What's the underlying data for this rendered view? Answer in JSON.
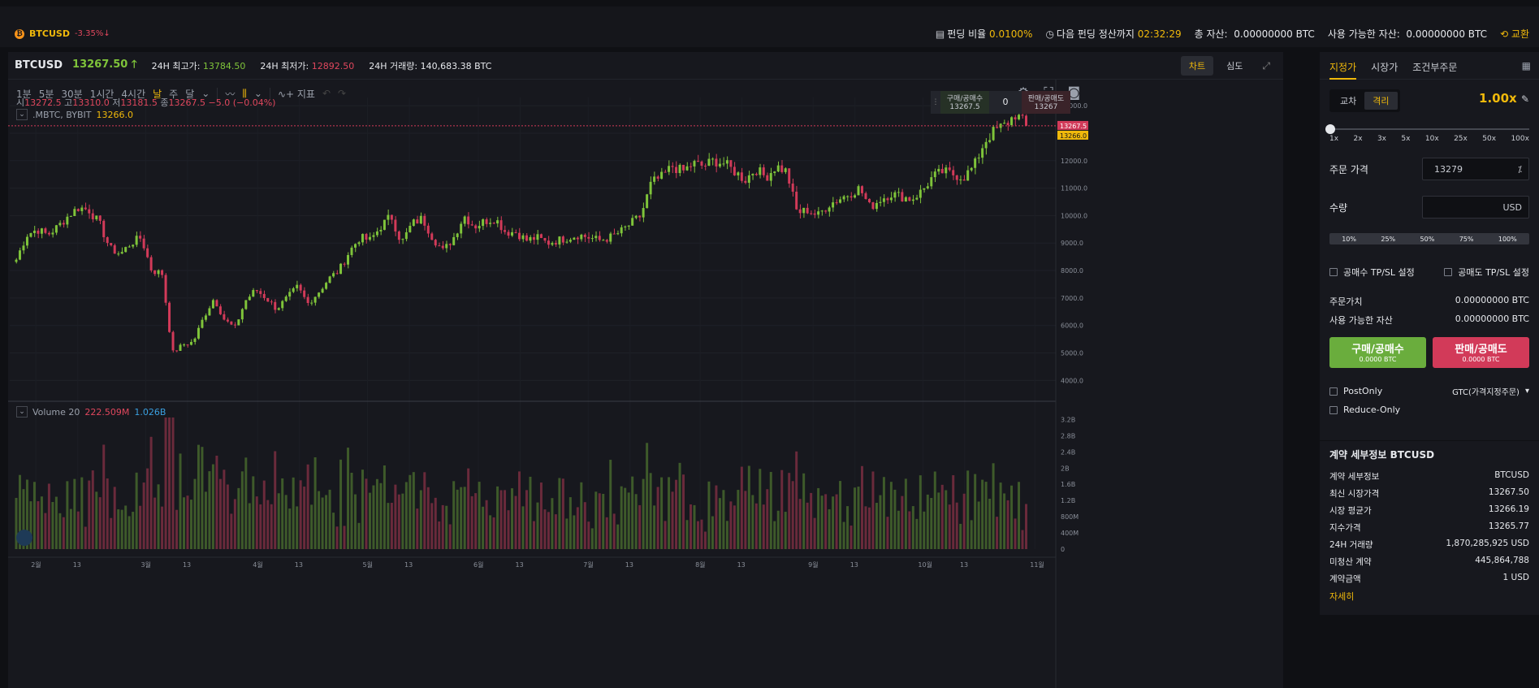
{
  "topbar": {
    "symbol": "BTCUSD",
    "change": "-3.35%↓",
    "funding_label": "펀딩 비율",
    "funding_value": "0.0100%",
    "next_funding_label": "다음 펀딩 정산까지",
    "next_funding_value": "02:32:29",
    "total_assets_label": "총 자산:",
    "total_assets_value": "0.00000000 BTC",
    "available_label": "사용 가능한 자산:",
    "available_value": "0.00000000 BTC",
    "exchange_label": "교환"
  },
  "chart_header": {
    "pair": "BTCUSD",
    "last_price": "13267.50 🡑",
    "high_label": "24H 최고가:",
    "high_value": "13784.50",
    "low_label": "24H 최저가:",
    "low_value": "12892.50",
    "volume_label": "24H 거래량:",
    "volume_value": "140,683.38 BTC",
    "tab_chart": "차트",
    "tab_depth": "심도"
  },
  "toolbar": {
    "timeframes": [
      "1분",
      "5분",
      "30분",
      "1시간",
      "4시간",
      "날",
      "주",
      "달"
    ],
    "active": "날",
    "indicators_label": "지표"
  },
  "ohlc": {
    "open_label": "시",
    "open": "13272.5",
    "high_label": "고",
    "high": "13310.0",
    "low_label": "저",
    "low": "13181.5",
    "close_label": "종",
    "close": "13267.5",
    "change": "−5.0 (−0.04%)"
  },
  "legend": {
    "series": ".MBTC, BYBIT",
    "value": "13266.0"
  },
  "quick_order": {
    "buy_label": "구매/공매수",
    "buy_price": "13267.5",
    "qty": "0",
    "sell_label": "판매/공매도",
    "sell_price": "13267"
  },
  "volume_legend": {
    "label": "Volume 20",
    "v1": "222.509M",
    "v2": "1.026B"
  },
  "price_tags": {
    "last": "13267.5",
    "mark": "13266.0"
  },
  "chart_data": {
    "type": "candlestick",
    "y_ticks": [
      4000,
      5000,
      6000,
      7000,
      8000,
      9000,
      10000,
      11000,
      12000,
      13000,
      14000
    ],
    "y_tick_labels": [
      "4000.0",
      "5000.0",
      "6000.0",
      "7000.0",
      "8000.0",
      "9000.0",
      "10000.0",
      "11000.0",
      "12000.0",
      "13000.0",
      "14000.0"
    ],
    "ylim": [
      3300,
      14300
    ],
    "volume_ticks": [
      0,
      0.4,
      0.8,
      1.2,
      1.6,
      2.0,
      2.4,
      2.8,
      3.2
    ],
    "volume_tick_labels": [
      "0",
      "400M",
      "800M",
      "1.2B",
      "1.6B",
      "2B",
      "2.4B",
      "2.8B",
      "3.2B"
    ],
    "volume_ylim": [
      0,
      3.45
    ],
    "x_labels": [
      "2월",
      "13",
      "3월",
      "13",
      "4월",
      "13",
      "5월",
      "13",
      "6월",
      "13",
      "7월",
      "13",
      "8월",
      "13",
      "9월",
      "13",
      "10월",
      "13",
      "11월"
    ],
    "x_label_pos": [
      0.025,
      0.065,
      0.13,
      0.17,
      0.237,
      0.277,
      0.342,
      0.382,
      0.448,
      0.488,
      0.553,
      0.593,
      0.66,
      0.7,
      0.768,
      0.808,
      0.873,
      0.913,
      0.98
    ],
    "price_path": [
      8400,
      9300,
      9500,
      9300,
      9600,
      10000,
      10300,
      10200,
      9700,
      8800,
      8600,
      9000,
      9200,
      8000,
      7900,
      5000,
      5300,
      5400,
      6300,
      7000,
      6200,
      5900,
      6900,
      7300,
      7000,
      6600,
      7000,
      7400,
      6800,
      7200,
      7700,
      8000,
      8700,
      9200,
      9100,
      9600,
      10000,
      9000,
      9700,
      9900,
      9200,
      8700,
      9200,
      10000,
      9600,
      9800,
      9900,
      9400,
      9400,
      9100,
      9200,
      9000,
      9100,
      9200,
      9300,
      9200,
      9100,
      9200,
      9400,
      9700,
      10000,
      11200,
      11400,
      11800,
      11600,
      11900,
      11800,
      12000,
      11900,
      11600,
      11300,
      11700,
      11400,
      11800,
      11600,
      10100,
      10200,
      10000,
      10400,
      10600,
      10800,
      11000,
      10300,
      10600,
      10800,
      10700,
      10600,
      10900,
      11400,
      11600,
      11500,
      11400,
      11800,
      12700,
      13100,
      13300,
      13700,
      13267
    ]
  },
  "order_panel": {
    "tabs": [
      "지정가",
      "시장가",
      "조건부주문"
    ],
    "margin_modes": [
      "교차",
      "격리"
    ],
    "active_margin": "격리",
    "leverage": "1.00x",
    "leverage_fraction": 0,
    "leverage_ticks": [
      "1x",
      "2x",
      "3x",
      "5x",
      "10x",
      "25x",
      "50x",
      "100x"
    ],
    "price_label": "주문 가격",
    "price_value": "13279",
    "qty_label": "수량",
    "qty_unit": "USD",
    "pct": [
      "10%",
      "25%",
      "50%",
      "75%",
      "100%"
    ],
    "tpsl_buy": "공매수 TP/SL 설정",
    "tpsl_sell": "공매도 TP/SL 설정",
    "order_value_label": "주문가치",
    "order_value": "0.00000000 BTC",
    "available_label": "사용 가능한 자산",
    "available_value": "0.00000000 BTC",
    "buy_label": "구매/공매수",
    "buy_sub": "0.0000 BTC",
    "sell_label": "판매/공매도",
    "sell_sub": "0.0000 BTC",
    "postonly": "PostOnly",
    "reduceonly": "Reduce-Only",
    "tif": "GTC(가격지정주문)"
  },
  "contract": {
    "title": "계약 세부정보 BTCUSD",
    "rows": [
      {
        "k": "계약 세부정보",
        "v": "BTCUSD"
      },
      {
        "k": "최신 시장가격",
        "v": "13267.50"
      },
      {
        "k": "시장 평균가",
        "v": "13266.19"
      },
      {
        "k": "지수가격",
        "v": "13265.77"
      },
      {
        "k": "24H 거래량",
        "v": "1,870,285,925 USD"
      },
      {
        "k": "미청산 계약",
        "v": "445,864,788"
      },
      {
        "k": "계약금액",
        "v": "1 USD"
      }
    ],
    "more": "자세히"
  }
}
